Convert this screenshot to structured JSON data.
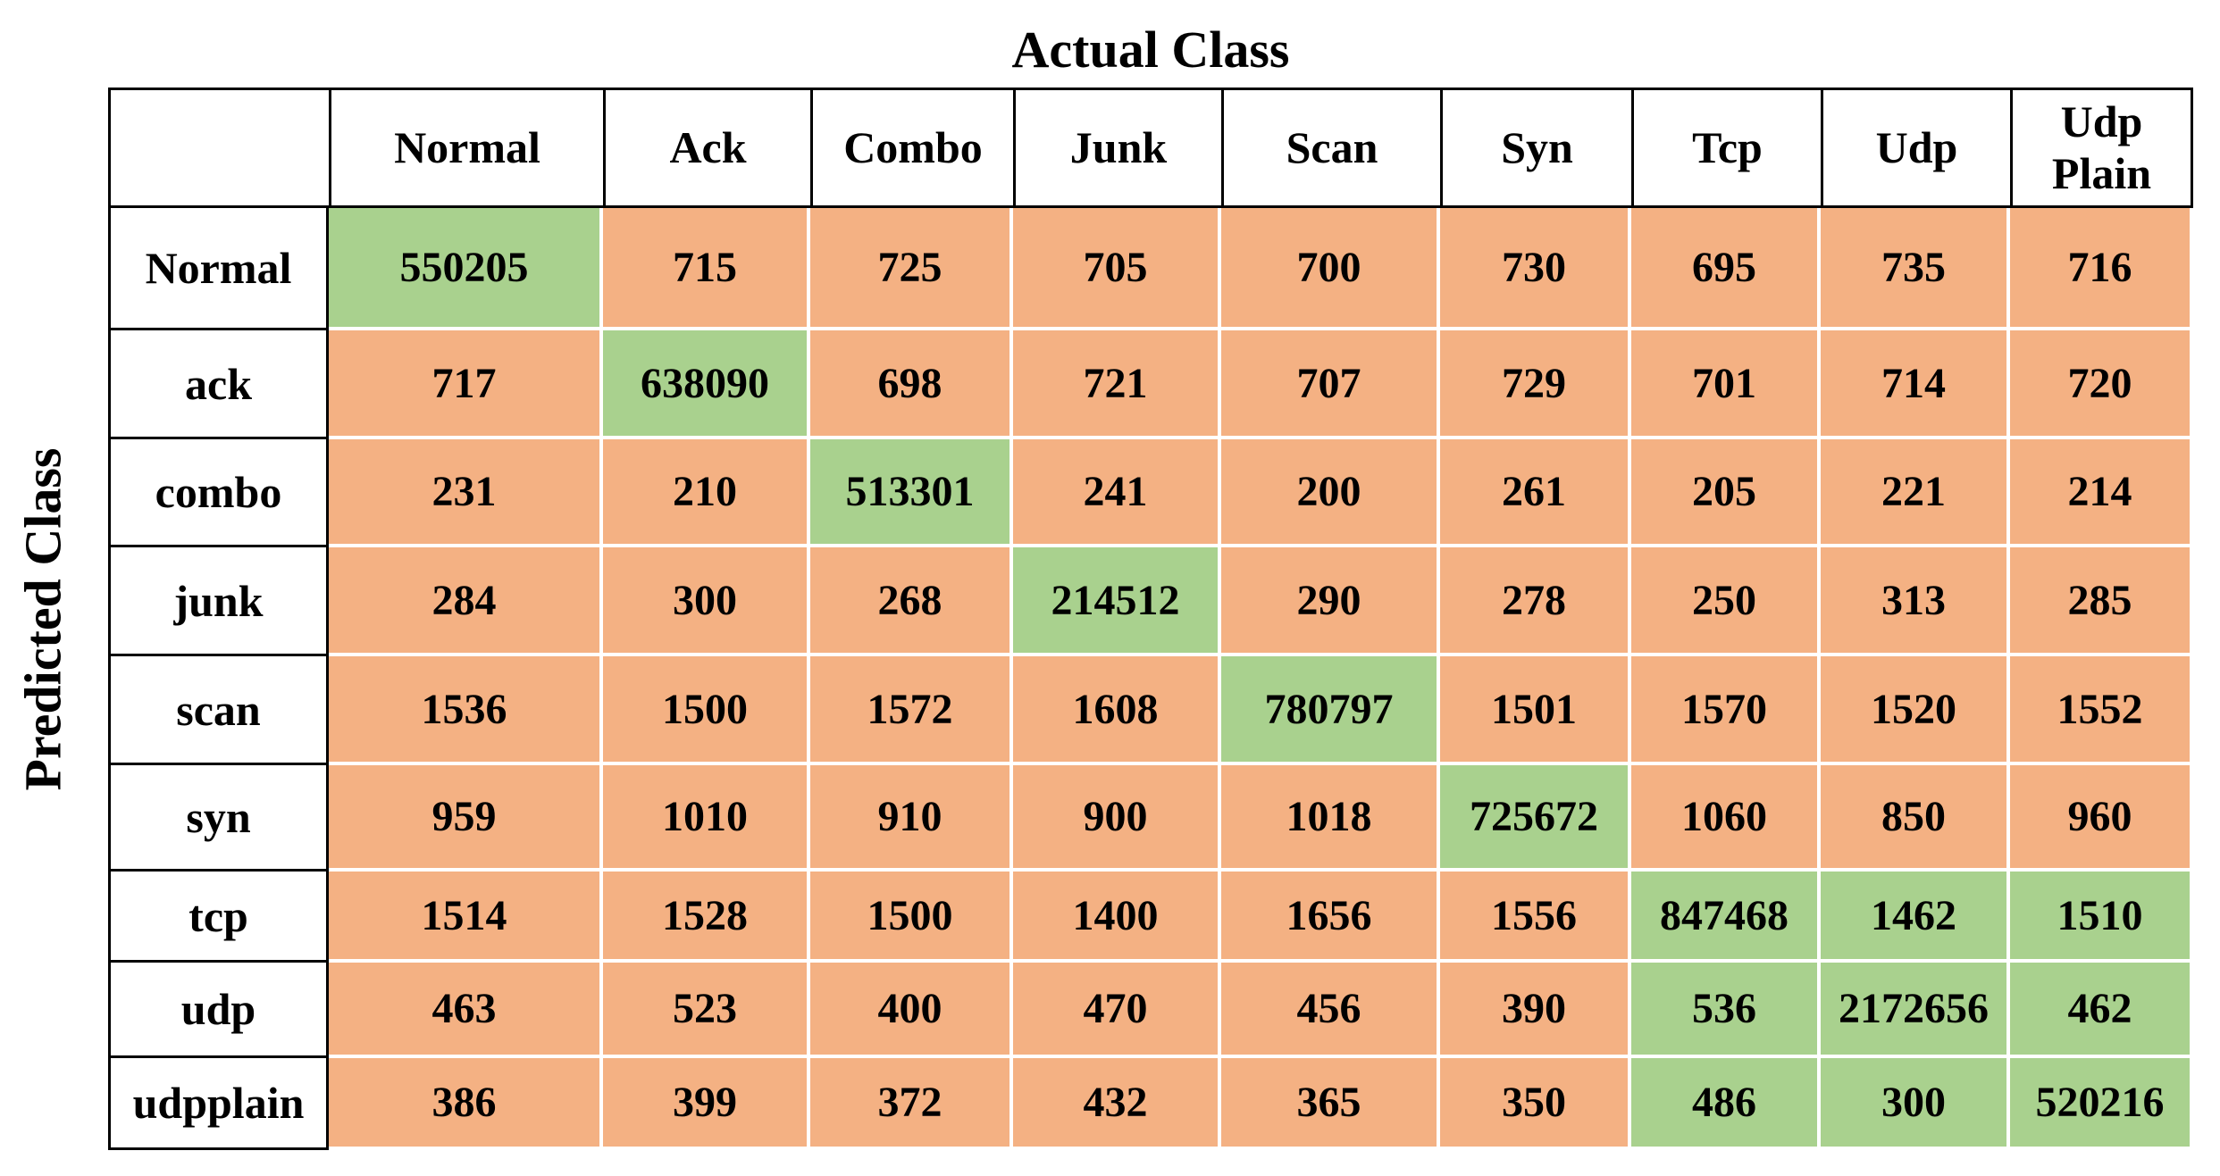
{
  "figure": {
    "x_axis_title": "Actual Class",
    "y_axis_title": "Predicted Class"
  },
  "chart_data": {
    "type": "heatmap",
    "title": "Actual Class",
    "xlabel": "Actual Class",
    "ylabel": "Predicted Class",
    "x_categories": [
      "Normal",
      "Ack",
      "Combo",
      "Junk",
      "Scan",
      "Syn",
      "Tcp",
      "Udp",
      "Udp Plain"
    ],
    "y_categories": [
      "Normal",
      "ack",
      "combo",
      "junk",
      "scan",
      "syn",
      "tcp",
      "udp",
      "udpplain"
    ],
    "values": [
      [
        550205,
        715,
        725,
        705,
        700,
        730,
        695,
        735,
        716
      ],
      [
        717,
        638090,
        698,
        721,
        707,
        729,
        701,
        714,
        720
      ],
      [
        231,
        210,
        513301,
        241,
        200,
        261,
        205,
        221,
        214
      ],
      [
        284,
        300,
        268,
        214512,
        290,
        278,
        250,
        313,
        285
      ],
      [
        1536,
        1500,
        1572,
        1608,
        780797,
        1501,
        1570,
        1520,
        1552
      ],
      [
        959,
        1010,
        910,
        900,
        1018,
        725672,
        1060,
        850,
        960
      ],
      [
        1514,
        1528,
        1500,
        1400,
        1656,
        1556,
        847468,
        1462,
        1510
      ],
      [
        463,
        523,
        400,
        470,
        456,
        390,
        536,
        2172656,
        462
      ],
      [
        386,
        399,
        372,
        432,
        365,
        350,
        486,
        300,
        520216
      ]
    ],
    "green_cells": [
      [
        0,
        0
      ],
      [
        1,
        1
      ],
      [
        2,
        2
      ],
      [
        3,
        3
      ],
      [
        4,
        4
      ],
      [
        5,
        5
      ],
      [
        6,
        6
      ],
      [
        6,
        7
      ],
      [
        6,
        8
      ],
      [
        7,
        6
      ],
      [
        7,
        7
      ],
      [
        7,
        8
      ],
      [
        8,
        6
      ],
      [
        8,
        7
      ],
      [
        8,
        8
      ]
    ],
    "colors": {
      "green": "#A9D18E",
      "orange": "#F4B183",
      "grid_line": "#000000",
      "cell_separator": "#FFFFFF"
    },
    "layout_hints": {
      "legend": "none",
      "grid": "on",
      "header_row_on_top": true,
      "label_column_on_left": true
    }
  }
}
